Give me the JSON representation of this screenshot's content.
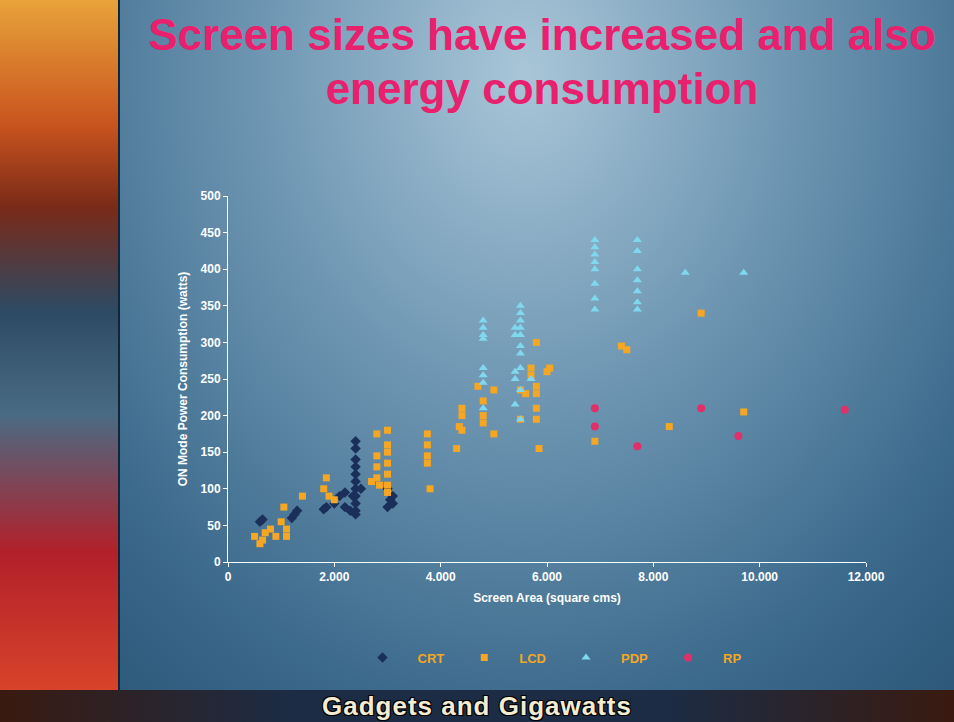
{
  "chart_data": {
    "type": "scatter",
    "title": "Screen sizes have increased and also energy consumption",
    "x_label": "Screen Area (square cms)",
    "y_label": "ON Mode Power Consumption (watts)",
    "xlim": [
      0,
      12000
    ],
    "xticks": [
      0,
      {
        "value": 2000,
        "label": "2.000"
      },
      {
        "value": 4000,
        "label": "4.000"
      },
      {
        "value": 6000,
        "label": "6.000"
      },
      {
        "value": 8000,
        "label": "8.000"
      },
      {
        "value": 10000,
        "label": "10.000"
      },
      {
        "value": 12000,
        "label": "12.000"
      }
    ],
    "ylim": [
      0,
      500
    ],
    "yticks": [
      0,
      50,
      100,
      150,
      200,
      250,
      300,
      350,
      400,
      450,
      500
    ],
    "grid": false,
    "legend": "bottom",
    "series": [
      {
        "name": "CRT",
        "color": "#1a2f5a",
        "marker": "diamond",
        "x": [
          600,
          650,
          1200,
          1250,
          1300,
          1800,
          1850,
          2000,
          2100,
          2200,
          2200,
          2300,
          2350,
          2400,
          2400,
          2400,
          2400,
          2400,
          2400,
          2400,
          2400,
          2400,
          2400,
          2400,
          2500,
          3000,
          3050,
          3100,
          3100,
          3000
        ],
        "values": [
          55,
          58,
          60,
          65,
          70,
          72,
          75,
          80,
          90,
          95,
          75,
          70,
          90,
          165,
          155,
          140,
          130,
          120,
          110,
          100,
          90,
          80,
          70,
          65,
          100,
          75,
          85,
          90,
          80,
          100
        ]
      },
      {
        "name": "LCD",
        "color": "#f5a623",
        "marker": "square",
        "x": [
          500,
          600,
          650,
          700,
          800,
          900,
          1000,
          1050,
          1100,
          1100,
          1400,
          1800,
          1850,
          1900,
          2000,
          2700,
          2800,
          2800,
          2800,
          2800,
          2850,
          3000,
          3000,
          3000,
          3000,
          3000,
          3000,
          3000,
          3750,
          3750,
          3750,
          3750,
          3800,
          4300,
          4350,
          4400,
          4400,
          4400,
          4700,
          4800,
          4800,
          4800,
          5000,
          5000,
          5500,
          5500,
          5600,
          5700,
          5700,
          5800,
          5800,
          5800,
          5800,
          5800,
          5850,
          6000,
          6050,
          6900,
          7400,
          7500,
          8300,
          8900,
          9700
        ],
        "values": [
          35,
          25,
          30,
          40,
          45,
          35,
          55,
          75,
          35,
          45,
          90,
          100,
          115,
          90,
          85,
          110,
          175,
          145,
          130,
          115,
          105,
          180,
          160,
          150,
          135,
          120,
          105,
          95,
          175,
          160,
          145,
          135,
          100,
          155,
          185,
          200,
          210,
          180,
          240,
          220,
          200,
          190,
          235,
          175,
          235,
          195,
          230,
          265,
          255,
          300,
          240,
          230,
          210,
          195,
          155,
          260,
          265,
          165,
          295,
          290,
          185,
          340,
          205
        ]
      },
      {
        "name": "PDP",
        "color": "#7fd8ee",
        "marker": "triangle-up",
        "x": [
          4800,
          4800,
          4800,
          4800,
          4800,
          4800,
          4800,
          4800,
          5400,
          5400,
          5400,
          5400,
          5400,
          5500,
          5500,
          5500,
          5500,
          5500,
          5500,
          5500,
          5500,
          5500,
          5500,
          5700,
          6900,
          6900,
          6900,
          6900,
          6900,
          6900,
          6900,
          6900,
          7700,
          7700,
          7700,
          7700,
          7700,
          7700,
          7700,
          8600,
          9700
        ],
        "values": [
          330,
          320,
          310,
          305,
          265,
          255,
          245,
          210,
          320,
          310,
          260,
          250,
          215,
          350,
          340,
          330,
          320,
          310,
          295,
          285,
          265,
          235,
          195,
          250,
          440,
          420,
          400,
          380,
          360,
          345,
          430,
          410,
          440,
          425,
          400,
          385,
          370,
          355,
          345,
          395,
          395
        ]
      },
      {
        "name": "RP",
        "color": "#e0306a",
        "marker": "circle",
        "x": [
          6900,
          6900,
          7700,
          8900,
          9600,
          11600
        ],
        "values": [
          210,
          185,
          158,
          210,
          172,
          208
        ]
      }
    ]
  },
  "footer": "Gadgets and Gigawatts"
}
